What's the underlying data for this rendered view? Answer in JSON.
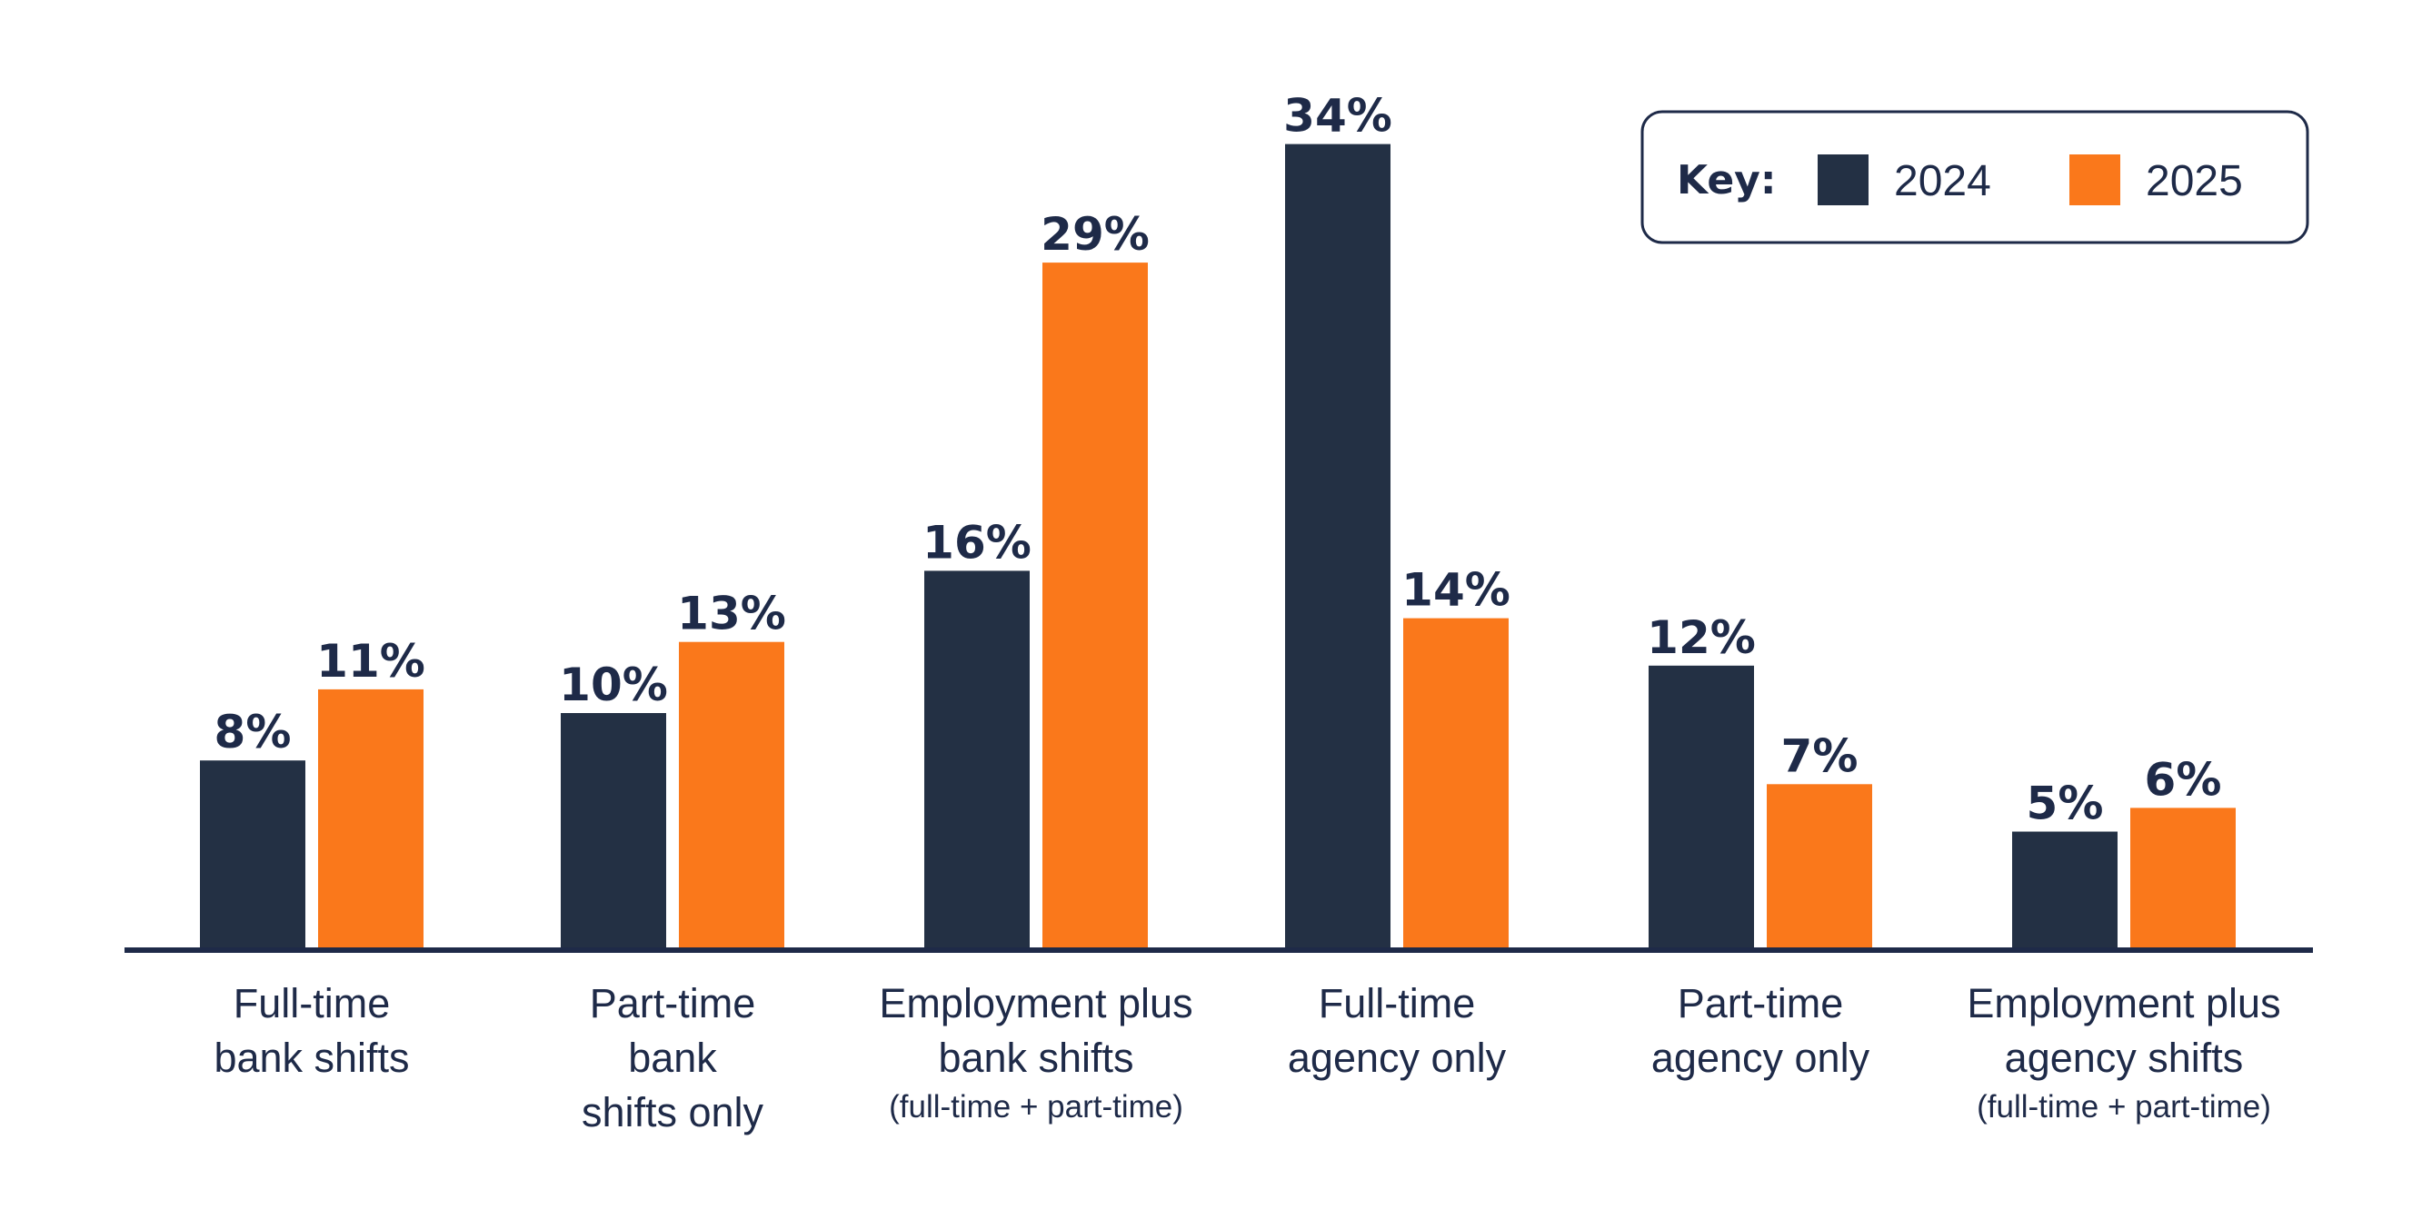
{
  "chart_data": {
    "type": "bar",
    "title": "",
    "xlabel": "",
    "ylabel": "",
    "ylim": [
      0,
      40
    ],
    "grid": false,
    "legend": {
      "title": "Key:",
      "position": "top-right"
    },
    "value_suffix": "%",
    "categories": [
      {
        "lines": [
          "Full-time",
          "bank shifts"
        ],
        "sub": ""
      },
      {
        "lines": [
          "Part-time",
          "bank",
          "shifts only"
        ],
        "sub": ""
      },
      {
        "lines": [
          "Employment plus",
          "bank shifts"
        ],
        "sub": "(full-time + part-time)"
      },
      {
        "lines": [
          "Full-time",
          "agency only"
        ],
        "sub": ""
      },
      {
        "lines": [
          "Part-time",
          "agency only"
        ],
        "sub": ""
      },
      {
        "lines": [
          "Employment plus",
          "agency shifts"
        ],
        "sub": "(full-time + part-time)"
      }
    ],
    "series": [
      {
        "name": "2024",
        "color": "#233044",
        "values": [
          8,
          10,
          16,
          34,
          12,
          5
        ]
      },
      {
        "name": "2025",
        "color": "#fa781b",
        "values": [
          11,
          13,
          29,
          14,
          7,
          6
        ]
      }
    ]
  },
  "colors": {
    "text": "#1e2a48",
    "axis": "#1e2a48",
    "legend_border": "#1e2a48"
  }
}
